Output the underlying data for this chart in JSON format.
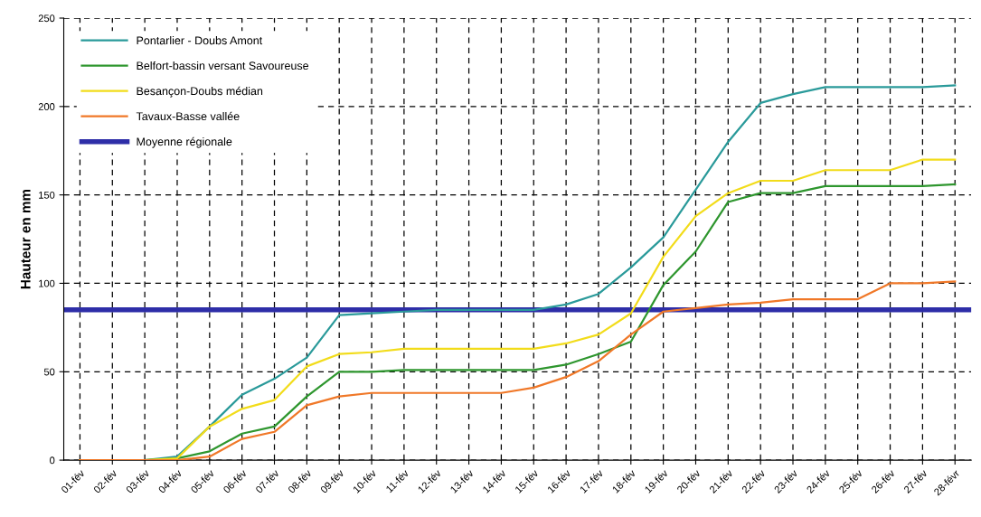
{
  "chart_data": {
    "type": "line",
    "ylabel": "Hauteur en mm",
    "categories": [
      "01-fév",
      "02-fév",
      "03-fév",
      "04-fév",
      "05-fév",
      "06-fév",
      "07-fév",
      "08-fév",
      "09-fév",
      "10-fév",
      "11-fév",
      "12-fév",
      "13-fév",
      "14-fév",
      "15-fév",
      "16-fév",
      "17-fév",
      "18-fév",
      "19-fév",
      "20-fév",
      "21-fév",
      "22-fév",
      "23-fév",
      "24-fév",
      "25-fév",
      "26-fév",
      "27-fév",
      "28-févr"
    ],
    "series": [
      {
        "name": "Pontarlier - Doubs Amont",
        "color": "#2a9a9a",
        "values": [
          0,
          0,
          0,
          2,
          19,
          37,
          46,
          58,
          82,
          83,
          84,
          85,
          85,
          85,
          85,
          88,
          94,
          109,
          126,
          153,
          180,
          202,
          207,
          211,
          211,
          211,
          211,
          212
        ]
      },
      {
        "name": "Belfort-bassin versant Savoureuse",
        "color": "#2e962e",
        "values": [
          0,
          0,
          0,
          1,
          5,
          15,
          19,
          36,
          50,
          50,
          51,
          51,
          51,
          51,
          51,
          54,
          60,
          67,
          99,
          118,
          146,
          151,
          151,
          155,
          155,
          155,
          155,
          156
        ]
      },
      {
        "name": "Besançon-Doubs médian",
        "color": "#f2dc1a",
        "values": [
          0,
          0,
          0,
          1,
          19,
          29,
          34,
          53,
          60,
          61,
          63,
          63,
          63,
          63,
          63,
          66,
          71,
          83,
          115,
          138,
          151,
          158,
          158,
          164,
          164,
          164,
          170,
          170
        ]
      },
      {
        "name": "Tavaux-Basse vallée",
        "color": "#f07828",
        "values": [
          0,
          0,
          0,
          0,
          2,
          12,
          16,
          31,
          36,
          38,
          38,
          38,
          38,
          38,
          41,
          47,
          56,
          71,
          84,
          86,
          88,
          89,
          91,
          91,
          91,
          100,
          100,
          101
        ]
      }
    ],
    "ref_lines": [
      {
        "axis": "y",
        "value": 85,
        "label": "Moyenne régionale",
        "color": "#2e2ea8"
      }
    ],
    "ylim": [
      0,
      250
    ],
    "yticks": [
      0,
      50,
      100,
      150,
      200,
      250
    ],
    "grid": true,
    "line_style": "solid",
    "legend": "top left"
  }
}
